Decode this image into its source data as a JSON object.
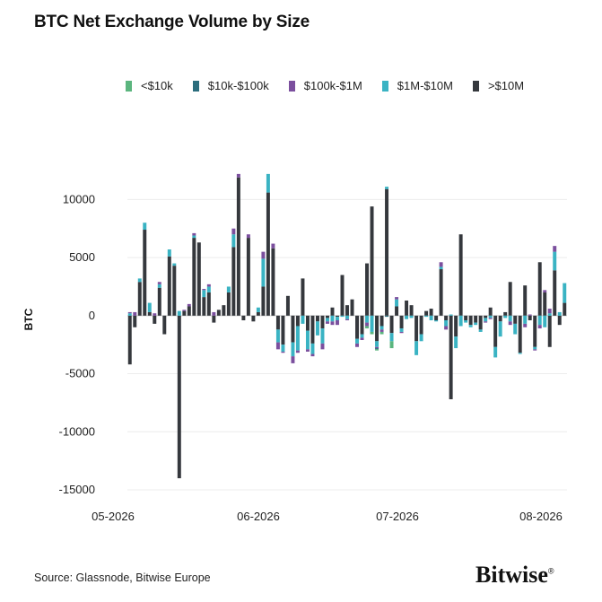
{
  "title": "BTC Net Exchange Volume by Size",
  "source": "Source: Glassnode, Bitwise Europe",
  "brand": "Bitwise",
  "brand_mark": "®",
  "legend": [
    {
      "label": "<$10k",
      "color": "#5bb57e"
    },
    {
      "label": "$10k-$100k",
      "color": "#2b6d7d"
    },
    {
      "label": "$100k-$1M",
      "color": "#7b4f9e"
    },
    {
      "label": "$1M-$10M",
      "color": "#3ab3c3"
    },
    {
      "label": ">$10M",
      "color": "#35383d"
    }
  ],
  "chart_data": {
    "type": "bar",
    "stacked": true,
    "ylabel": "BTC",
    "ylim": [
      -15000,
      12500
    ],
    "yticks": [
      -15000,
      -10000,
      -5000,
      0,
      5000,
      10000
    ],
    "xticks": [
      "05-2026",
      "06-2026",
      "07-2026",
      "08-2026"
    ],
    "grid": true,
    "legend_position": "top",
    "series": [
      {
        "name": "<$10k",
        "color": "#5bb57e"
      },
      {
        "name": "$10k-$100k",
        "color": "#2b6d7d"
      },
      {
        "name": "$100k-$1M",
        "color": "#7b4f9e"
      },
      {
        "name": "$1M-$10M",
        "color": "#3ab3c3"
      },
      {
        "name": ">$10M",
        "color": "#35383d"
      }
    ],
    "bars": [
      [
        0,
        0,
        100,
        200,
        -4200
      ],
      [
        0,
        0,
        300,
        0,
        -1000
      ],
      [
        0,
        0,
        0,
        300,
        2900
      ],
      [
        0,
        0,
        0,
        600,
        7400
      ],
      [
        0,
        0,
        0,
        800,
        300
      ],
      [
        0,
        0,
        200,
        0,
        -700
      ],
      [
        0,
        0,
        200,
        300,
        2400
      ],
      [
        0,
        0,
        0,
        0,
        -1600
      ],
      [
        0,
        0,
        0,
        600,
        5100
      ],
      [
        0,
        0,
        0,
        200,
        4300
      ],
      [
        0,
        0,
        0,
        400,
        -14000
      ],
      [
        0,
        0,
        100,
        0,
        400
      ],
      [
        0,
        0,
        200,
        0,
        800
      ],
      [
        0,
        0,
        200,
        200,
        6700
      ],
      [
        0,
        0,
        0,
        0,
        6300
      ],
      [
        0,
        0,
        100,
        600,
        1600
      ],
      [
        0,
        0,
        200,
        500,
        2000
      ],
      [
        0,
        0,
        300,
        0,
        -600
      ],
      [
        0,
        0,
        0,
        0,
        500
      ],
      [
        0,
        0,
        0,
        0,
        900
      ],
      [
        0,
        0,
        0,
        500,
        2000
      ],
      [
        0,
        0,
        500,
        1100,
        5900
      ],
      [
        0,
        0,
        300,
        0,
        11900
      ],
      [
        0,
        0,
        0,
        0,
        -400
      ],
      [
        0,
        0,
        300,
        0,
        6700
      ],
      [
        0,
        0,
        0,
        0,
        -500
      ],
      [
        0,
        0,
        0,
        400,
        300
      ],
      [
        0,
        0,
        600,
        2400,
        2500
      ],
      [
        0,
        0,
        0,
        1600,
        10600
      ],
      [
        0,
        0,
        400,
        0,
        5800
      ],
      [
        0,
        0,
        -600,
        -1100,
        -1200
      ],
      [
        0,
        0,
        -100,
        -600,
        -2500
      ],
      [
        0,
        0,
        0,
        0,
        1700
      ],
      [
        0,
        0,
        -600,
        -1200,
        -2300
      ],
      [
        0,
        0,
        -200,
        -2100,
        -900
      ],
      [
        0,
        0,
        0,
        -700,
        3200
      ],
      [
        0,
        0,
        -200,
        -1600,
        -1300
      ],
      [
        0,
        0,
        -200,
        -900,
        -2400
      ],
      [
        0,
        0,
        0,
        -1200,
        -500
      ],
      [
        0,
        0,
        -500,
        -1300,
        -1100
      ],
      [
        0,
        0,
        -200,
        -300,
        -200
      ],
      [
        0,
        0,
        -300,
        -500,
        700
      ],
      [
        0,
        0,
        -400,
        -300,
        -100
      ],
      [
        0,
        0,
        0,
        -100,
        3500
      ],
      [
        0,
        0,
        -100,
        -300,
        900
      ],
      [
        0,
        0,
        0,
        0,
        1400
      ],
      [
        0,
        0,
        -300,
        -400,
        -2000
      ],
      [
        0,
        0,
        -200,
        -300,
        -1600
      ],
      [
        -200,
        0,
        -300,
        -600,
        4500
      ],
      [
        -200,
        0,
        0,
        -1400,
        9400
      ],
      [
        -100,
        -100,
        -100,
        -500,
        -2200
      ],
      [
        -200,
        0,
        -200,
        -300,
        -900
      ],
      [
        0,
        -100,
        0,
        200,
        10900
      ],
      [
        -600,
        0,
        0,
        -700,
        -1500
      ],
      [
        0,
        0,
        200,
        600,
        800
      ],
      [
        0,
        0,
        -100,
        -300,
        -1100
      ],
      [
        0,
        0,
        0,
        -300,
        1300
      ],
      [
        0,
        0,
        0,
        -200,
        900
      ],
      [
        0,
        0,
        0,
        -1200,
        -2200
      ],
      [
        0,
        0,
        0,
        -600,
        -1600
      ],
      [
        0,
        0,
        0,
        -100,
        400
      ],
      [
        0,
        0,
        0,
        -400,
        600
      ],
      [
        0,
        0,
        0,
        -100,
        -400
      ],
      [
        0,
        0,
        400,
        200,
        4000
      ],
      [
        0,
        0,
        -300,
        -500,
        -400
      ],
      [
        0,
        0,
        0,
        100,
        -7200
      ],
      [
        0,
        0,
        0,
        -1000,
        -1800
      ],
      [
        0,
        0,
        0,
        -900,
        7000
      ],
      [
        0,
        0,
        0,
        -200,
        -400
      ],
      [
        0,
        0,
        0,
        -200,
        -800
      ],
      [
        0,
        0,
        0,
        -200,
        -600
      ],
      [
        0,
        0,
        0,
        -200,
        -1200
      ],
      [
        0,
        0,
        -100,
        -300,
        -200
      ],
      [
        0,
        0,
        -100,
        -200,
        700
      ],
      [
        0,
        0,
        0,
        -900,
        -2700
      ],
      [
        0,
        0,
        0,
        -1300,
        -500
      ],
      [
        0,
        0,
        0,
        -200,
        300
      ],
      [
        0,
        0,
        -300,
        -500,
        2900
      ],
      [
        0,
        0,
        0,
        -900,
        -700
      ],
      [
        0,
        0,
        0,
        -100,
        -3200
      ],
      [
        0,
        0,
        -300,
        -700,
        2600
      ],
      [
        0,
        0,
        100,
        0,
        -400
      ],
      [
        0,
        0,
        -100,
        -200,
        -2700
      ],
      [
        0,
        0,
        -300,
        -800,
        4600
      ],
      [
        0,
        0,
        200,
        -1000,
        2000
      ],
      [
        0,
        0,
        400,
        200,
        -2700
      ],
      [
        0,
        0,
        500,
        1600,
        3900
      ],
      [
        0,
        0,
        0,
        300,
        -800
      ],
      [
        0,
        0,
        0,
        1700,
        1100
      ]
    ]
  }
}
